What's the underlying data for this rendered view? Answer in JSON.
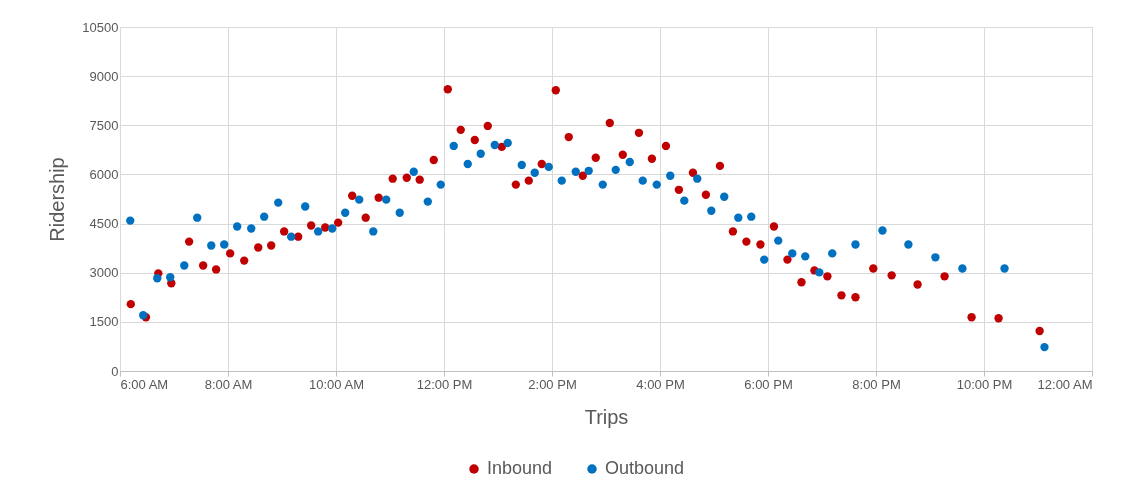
{
  "chart_data": {
    "type": "scatter",
    "xlabel": "Trips",
    "ylabel": "Ridership",
    "xlim": [
      6,
      24
    ],
    "ylim": [
      0,
      10500
    ],
    "xticks": [
      {
        "value": 6,
        "label": "6:00 AM"
      },
      {
        "value": 8,
        "label": "8:00 AM"
      },
      {
        "value": 10,
        "label": "10:00 AM"
      },
      {
        "value": 12,
        "label": "12:00 PM"
      },
      {
        "value": 14,
        "label": "2:00 PM"
      },
      {
        "value": 16,
        "label": "4:00 PM"
      },
      {
        "value": 18,
        "label": "6:00 PM"
      },
      {
        "value": 20,
        "label": "8:00 PM"
      },
      {
        "value": 22,
        "label": "10:00 PM"
      },
      {
        "value": 24,
        "label": "12:00 AM"
      }
    ],
    "yticks": [
      0,
      1500,
      3000,
      4500,
      6000,
      7500,
      9000,
      10500
    ],
    "grid": true,
    "legend": "bottom",
    "marker": "circle",
    "series": [
      {
        "name": "Inbound",
        "color": "#c00000",
        "x": [
          6.2,
          6.48,
          6.71,
          6.95,
          7.28,
          7.54,
          7.78,
          8.04,
          8.3,
          8.56,
          8.8,
          9.04,
          9.3,
          9.54,
          9.8,
          10.04,
          10.3,
          10.55,
          10.79,
          11.05,
          11.31,
          11.55,
          11.81,
          12.07,
          12.31,
          12.57,
          12.81,
          13.07,
          13.33,
          13.57,
          13.81,
          14.07,
          14.31,
          14.57,
          14.81,
          15.07,
          15.31,
          15.61,
          15.85,
          16.11,
          16.35,
          16.61,
          16.85,
          17.11,
          17.35,
          17.6,
          17.86,
          18.11,
          18.36,
          18.62,
          18.86,
          19.1,
          19.36,
          19.62,
          19.95,
          20.29,
          20.77,
          21.27,
          21.77,
          22.27,
          23.03
        ],
        "values": [
          2040,
          1640,
          2980,
          2680,
          3950,
          3220,
          3100,
          3590,
          3370,
          3770,
          3830,
          4260,
          4100,
          4440,
          4380,
          4530,
          5350,
          4680,
          5290,
          5870,
          5900,
          5840,
          6440,
          8600,
          7360,
          7050,
          7480,
          6840,
          5690,
          5810,
          6320,
          8570,
          7140,
          5960,
          6510,
          7570,
          6600,
          7270,
          6480,
          6870,
          5530,
          6050,
          5380,
          6260,
          4260,
          3950,
          3860,
          4410,
          3400,
          2710,
          3070,
          2890,
          2310,
          2250,
          3130,
          2920,
          2640,
          2890,
          1640,
          1610,
          1220
        ]
      },
      {
        "name": "Outbound",
        "color": "#0070c0",
        "x": [
          6.19,
          6.43,
          6.69,
          6.93,
          7.19,
          7.43,
          7.69,
          7.93,
          8.17,
          8.43,
          8.67,
          8.93,
          9.17,
          9.43,
          9.67,
          9.93,
          10.17,
          10.43,
          10.69,
          10.93,
          11.18,
          11.44,
          11.7,
          11.94,
          12.18,
          12.44,
          12.68,
          12.94,
          13.18,
          13.44,
          13.68,
          13.94,
          14.18,
          14.44,
          14.68,
          14.94,
          15.18,
          15.44,
          15.68,
          15.94,
          16.19,
          16.45,
          16.69,
          16.95,
          17.19,
          17.45,
          17.69,
          17.93,
          18.19,
          18.45,
          18.69,
          18.95,
          19.19,
          19.62,
          20.12,
          20.6,
          21.1,
          21.6,
          22.38,
          23.12
        ],
        "values": [
          4590,
          1700,
          2830,
          2860,
          3220,
          4680,
          3830,
          3860,
          4410,
          4350,
          4710,
          5140,
          4100,
          5020,
          4260,
          4350,
          4830,
          5230,
          4260,
          5230,
          4830,
          6080,
          5170,
          5690,
          6870,
          6320,
          6630,
          6900,
          6960,
          6290,
          6050,
          6230,
          5810,
          6080,
          6110,
          5690,
          6140,
          6380,
          5810,
          5690,
          5960,
          5200,
          5870,
          4890,
          5320,
          4680,
          4710,
          3400,
          3980,
          3590,
          3500,
          3010,
          3590,
          3860,
          4290,
          3860,
          3470,
          3130,
          3130,
          730
        ]
      }
    ]
  }
}
